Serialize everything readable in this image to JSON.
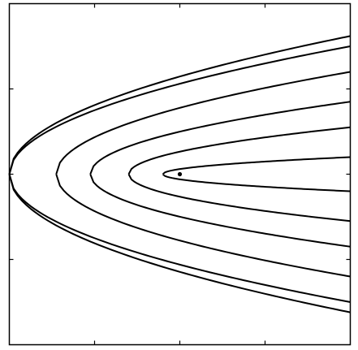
{
  "chart_data": {
    "type": "line",
    "title": "",
    "xlabel": "",
    "ylabel": "",
    "xlim": [
      0,
      4
    ],
    "ylim": [
      -2,
      2
    ],
    "grid": false,
    "legend": "none",
    "tick_labels": false,
    "colors": {
      "line": "#000000",
      "background": "#ffffff"
    },
    "x_ticks": [
      0,
      1,
      2,
      3,
      4
    ],
    "y_ticks": [
      -2,
      -1,
      0,
      1,
      2
    ],
    "center_point": {
      "x": 2.0,
      "y": 0
    },
    "series": [
      {
        "vertex_x": 0.0,
        "y_at_xmax": 1.62
      },
      {
        "vertex_x": 0.0,
        "y_at_xmax": 1.5
      },
      {
        "vertex_x": 0.55,
        "y_at_xmax": 1.2
      },
      {
        "vertex_x": 0.95,
        "y_at_xmax": 0.85
      },
      {
        "vertex_x": 1.4,
        "y_at_xmax": 0.55
      },
      {
        "vertex_x": 1.8,
        "y_at_xmax": 0.2
      }
    ]
  }
}
